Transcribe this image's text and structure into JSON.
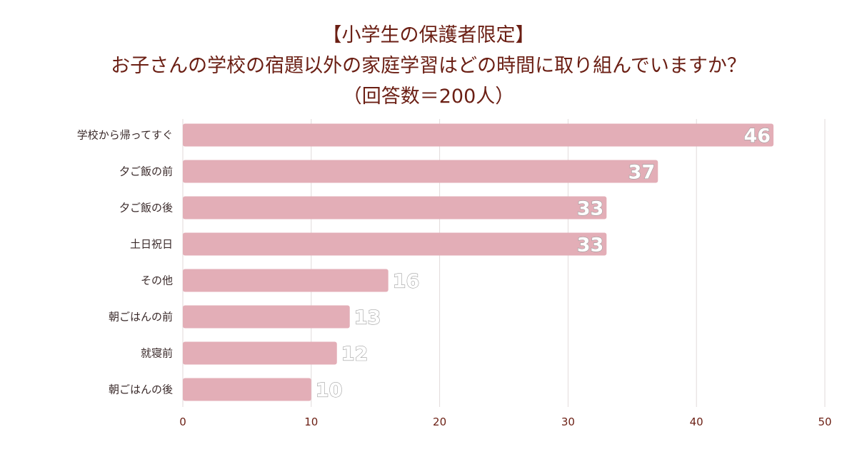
{
  "chart_data": {
    "type": "bar",
    "orientation": "horizontal",
    "title_lines": [
      "【小学生の保護者限定】",
      "お子さんの学校の宿題以外の家庭学習はどの時間に取り組んでいますか？",
      "（回答数＝200人）"
    ],
    "categories": [
      "学校から帰ってすぐ",
      "夕ご飯の前",
      "夕ご飯の後",
      "土日祝日",
      "その他",
      "朝ごはんの前",
      "就寝前",
      "朝ごはんの後"
    ],
    "values": [
      46,
      37,
      33,
      33,
      16,
      13,
      12,
      10
    ],
    "xlim": [
      0,
      50
    ],
    "xticks": [
      0,
      10,
      20,
      30,
      40,
      50
    ],
    "xlabel": "",
    "ylabel": "",
    "grid": true,
    "bar_color": "#e3aeb7"
  }
}
